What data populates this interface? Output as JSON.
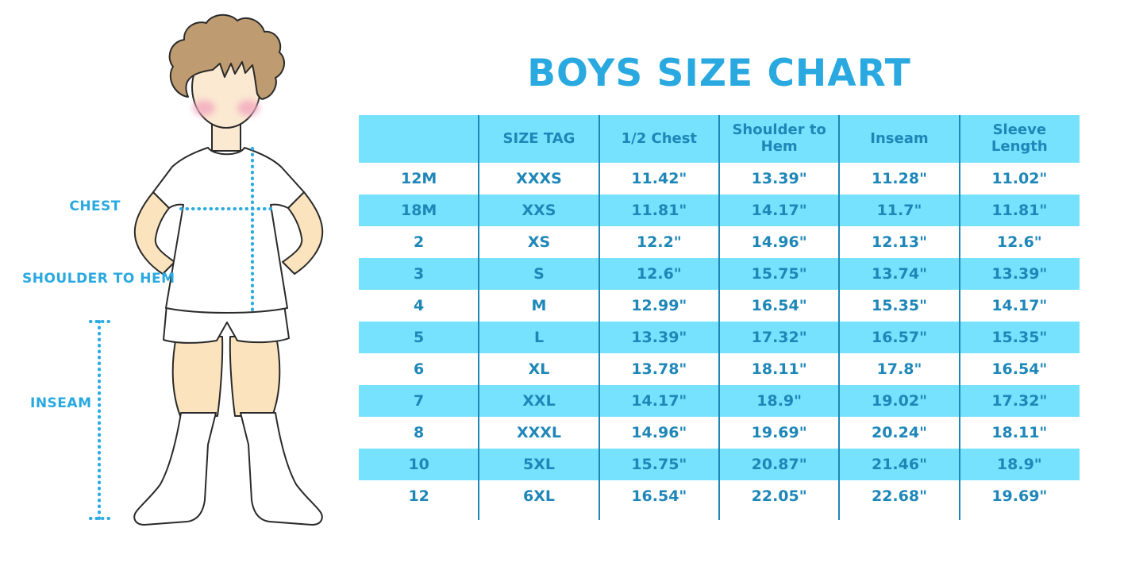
{
  "title": "BOYS SIZE CHART",
  "figure": {
    "illustration": "boy-in-white-tshirt-shorts-and-knee-socks",
    "labels": {
      "chest": "CHEST",
      "shoulder_to_hem": "SHOULDER TO HEM",
      "inseam": "INSEAM"
    }
  },
  "chart_data": {
    "type": "table",
    "title": "BOYS SIZE CHART",
    "columns": [
      "",
      "SIZE TAG",
      "1/2 Chest",
      "Shoulder to Hem",
      "Inseam",
      "Sleeve Length"
    ],
    "rows": [
      [
        "12M",
        "XXXS",
        "11.42\"",
        "13.39\"",
        "11.28\"",
        "11.02\""
      ],
      [
        "18M",
        "XXS",
        "11.81\"",
        "14.17\"",
        "11.7\"",
        "11.81\""
      ],
      [
        "2",
        "XS",
        "12.2\"",
        "14.96\"",
        "12.13\"",
        "12.6\""
      ],
      [
        "3",
        "S",
        "12.6\"",
        "15.75\"",
        "13.74\"",
        "13.39\""
      ],
      [
        "4",
        "M",
        "12.99\"",
        "16.54\"",
        "15.35\"",
        "14.17\""
      ],
      [
        "5",
        "L",
        "13.39\"",
        "17.32\"",
        "16.57\"",
        "15.35\""
      ],
      [
        "6",
        "XL",
        "13.78\"",
        "18.11\"",
        "17.8\"",
        "16.54\""
      ],
      [
        "7",
        "XXL",
        "14.17\"",
        "18.9\"",
        "19.02\"",
        "17.32\""
      ],
      [
        "8",
        "XXXL",
        "14.96\"",
        "19.69\"",
        "20.24\"",
        "18.11\""
      ],
      [
        "10",
        "5XL",
        "15.75\"",
        "20.87\"",
        "21.46\"",
        "18.9\""
      ],
      [
        "12",
        "6XL",
        "16.54\"",
        "22.05\"",
        "22.68\"",
        "19.69\""
      ]
    ],
    "row_striping": "alternating white and light blue, header light blue",
    "legend_position": "none",
    "grid": "vertical separators only"
  },
  "colors": {
    "accent_blue": "#29A9E0",
    "stripe_blue": "#76E2FD",
    "table_text_blue": "#1E87B8",
    "dotted_line_blue": "#2AABE2",
    "hair_brown": "#BE9B70",
    "skin_face": "#FBE9D2",
    "skin_body": "#FAE3BD",
    "cheek_pink": "#F2A9C0"
  }
}
